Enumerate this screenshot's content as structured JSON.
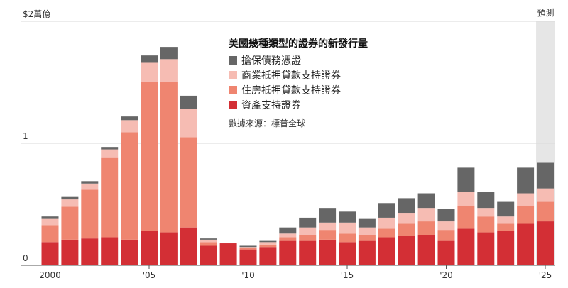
{
  "chart_data": {
    "type": "bar",
    "stacked": true,
    "title": "美國幾種類型的證券的新發行量",
    "source": "數據來源：標普全球",
    "y_unit_label": "$2萬億",
    "yticks": [
      {
        "value": 0,
        "label": "0"
      },
      {
        "value": 1,
        "label": "1"
      },
      {
        "value": 2,
        "label": "$2萬億"
      }
    ],
    "ylim": [
      0,
      2
    ],
    "grid": true,
    "legend_position": "top-center",
    "forecast_label": "預測",
    "forecast_start": 2025,
    "x": [
      2000,
      2001,
      2002,
      2003,
      2004,
      2005,
      2006,
      2007,
      2008,
      2009,
      2010,
      2011,
      2012,
      2013,
      2014,
      2015,
      2016,
      2017,
      2018,
      2019,
      2020,
      2021,
      2022,
      2023,
      2024,
      2025
    ],
    "xticks": [
      {
        "value": 2000,
        "label": "2000"
      },
      {
        "value": 2005,
        "label": "'05"
      },
      {
        "value": 2010,
        "label": "'10"
      },
      {
        "value": 2015,
        "label": "'15"
      },
      {
        "value": 2020,
        "label": "'20"
      },
      {
        "value": 2025,
        "label": "'25"
      }
    ],
    "series": [
      {
        "name": "資產支持證券",
        "color": "#d32f35",
        "values": [
          0.19,
          0.21,
          0.22,
          0.23,
          0.21,
          0.28,
          0.27,
          0.31,
          0.16,
          0.18,
          0.13,
          0.15,
          0.2,
          0.2,
          0.21,
          0.19,
          0.2,
          0.23,
          0.24,
          0.25,
          0.2,
          0.3,
          0.27,
          0.28,
          0.34,
          0.36
        ]
      },
      {
        "name": "住房抵押貸款支持證券",
        "color": "#ef8570",
        "values": [
          0.14,
          0.27,
          0.4,
          0.65,
          0.88,
          1.22,
          1.23,
          0.74,
          0.03,
          0.0,
          0.01,
          0.02,
          0.03,
          0.05,
          0.08,
          0.07,
          0.05,
          0.07,
          0.1,
          0.11,
          0.09,
          0.19,
          0.13,
          0.06,
          0.15,
          0.16
        ]
      },
      {
        "name": "商業抵押貸款支持證券",
        "color": "#f6bcb3",
        "values": [
          0.05,
          0.06,
          0.05,
          0.07,
          0.1,
          0.16,
          0.19,
          0.23,
          0.02,
          0.0,
          0.01,
          0.02,
          0.03,
          0.06,
          0.06,
          0.09,
          0.06,
          0.09,
          0.09,
          0.11,
          0.07,
          0.11,
          0.07,
          0.06,
          0.1,
          0.11
        ]
      },
      {
        "name": "擔保債務憑證",
        "color": "#666666",
        "values": [
          0.02,
          0.02,
          0.02,
          0.02,
          0.03,
          0.06,
          0.1,
          0.11,
          0.01,
          0.0,
          0.01,
          0.01,
          0.05,
          0.08,
          0.12,
          0.09,
          0.07,
          0.12,
          0.12,
          0.12,
          0.1,
          0.2,
          0.13,
          0.12,
          0.21,
          0.21
        ]
      }
    ],
    "legend_order": [
      "擔保債務憑證",
      "商業抵押貸款支持證券",
      "住房抵押貸款支持證券",
      "資產支持證券"
    ]
  }
}
